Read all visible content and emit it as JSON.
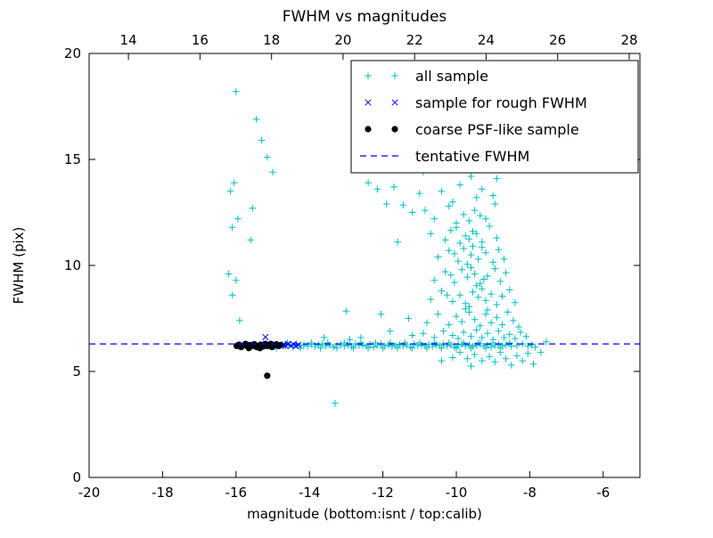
{
  "chart_data": {
    "type": "scatter",
    "title": "FWHM vs magnitudes",
    "xlabel": "magnitude (bottom:isnt / top:calib)",
    "ylabel": "FWHM (pix)",
    "xlim": [
      -20,
      -5
    ],
    "ylim": [
      0,
      20
    ],
    "xlim_top": [
      12.9,
      28.3
    ],
    "xticks": [
      -20,
      -18,
      -16,
      -14,
      -12,
      -10,
      -8,
      -6
    ],
    "xticks_top": [
      14,
      16,
      18,
      20,
      22,
      24,
      26,
      28
    ],
    "yticks": [
      0,
      5,
      10,
      15,
      20
    ],
    "grid": false,
    "legend_position": "upper right",
    "series": [
      {
        "name": "all sample",
        "marker": "plus",
        "color": "#00bfbf",
        "points": [
          [
            -15.95,
            6.22
          ],
          [
            -15.85,
            6.18
          ],
          [
            -15.75,
            6.25
          ],
          [
            -15.65,
            6.2
          ],
          [
            -15.55,
            6.28
          ],
          [
            -15.45,
            6.15
          ],
          [
            -15.35,
            6.22
          ],
          [
            -15.25,
            6.3
          ],
          [
            -15.15,
            6.2
          ],
          [
            -15.05,
            6.25
          ],
          [
            -14.95,
            6.18
          ],
          [
            -14.85,
            6.22
          ],
          [
            -14.75,
            6.28
          ],
          [
            -14.65,
            6.2
          ],
          [
            -14.55,
            6.25
          ],
          [
            -14.45,
            6.15
          ],
          [
            -14.35,
            6.3
          ],
          [
            -14.25,
            6.22
          ],
          [
            -14.15,
            6.25
          ],
          [
            -14.05,
            6.2
          ],
          [
            -13.95,
            6.28
          ],
          [
            -13.85,
            6.18
          ],
          [
            -13.75,
            6.25
          ],
          [
            -13.65,
            6.3
          ],
          [
            -13.55,
            6.2
          ],
          [
            -13.45,
            6.25
          ],
          [
            -13.35,
            6.15
          ],
          [
            -13.25,
            6.22
          ],
          [
            -13.15,
            6.28
          ],
          [
            -13.05,
            6.2
          ],
          [
            -12.95,
            6.25
          ],
          [
            -12.85,
            6.18
          ],
          [
            -12.75,
            6.3
          ],
          [
            -12.65,
            6.22
          ],
          [
            -12.55,
            6.25
          ],
          [
            -12.45,
            6.2
          ],
          [
            -12.35,
            6.28
          ],
          [
            -12.25,
            6.15
          ],
          [
            -12.15,
            6.22
          ],
          [
            -12.05,
            6.3
          ],
          [
            -11.95,
            6.2
          ],
          [
            -11.85,
            6.25
          ],
          [
            -11.75,
            6.18
          ],
          [
            -11.65,
            6.22
          ],
          [
            -11.55,
            6.28
          ],
          [
            -11.45,
            6.2
          ],
          [
            -11.35,
            6.25
          ],
          [
            -11.25,
            6.15
          ],
          [
            -11.15,
            6.3
          ],
          [
            -11.05,
            6.22
          ],
          [
            -10.95,
            6.25
          ],
          [
            -10.85,
            6.2
          ],
          [
            -10.75,
            6.28
          ],
          [
            -10.65,
            6.18
          ],
          [
            -10.55,
            6.25
          ],
          [
            -10.45,
            6.22
          ],
          [
            -10.35,
            6.3
          ],
          [
            -10.25,
            6.2
          ],
          [
            -10.15,
            6.25
          ],
          [
            -10.05,
            6.15
          ],
          [
            -9.95,
            6.22
          ],
          [
            -9.85,
            6.28
          ],
          [
            -9.75,
            6.2
          ],
          [
            -9.65,
            6.25
          ],
          [
            -9.55,
            6.18
          ],
          [
            -9.45,
            6.22
          ],
          [
            -9.35,
            6.3
          ],
          [
            -9.25,
            6.2
          ],
          [
            -9.15,
            6.25
          ],
          [
            -9.05,
            6.15
          ],
          [
            -8.95,
            6.22
          ],
          [
            -8.85,
            6.28
          ],
          [
            -8.75,
            6.2
          ],
          [
            -8.65,
            6.25
          ],
          [
            -8.5,
            6.18
          ],
          [
            -8.35,
            6.22
          ],
          [
            -8.2,
            6.3
          ],
          [
            -8.05,
            6.2
          ],
          [
            -7.95,
            6.25
          ],
          [
            -7.85,
            6.15
          ],
          [
            -14.9,
            6.1
          ],
          [
            -14.6,
            6.35
          ],
          [
            -14.25,
            6.1
          ],
          [
            -13.95,
            6.35
          ],
          [
            -13.7,
            6.1
          ],
          [
            -13.5,
            6.35
          ],
          [
            -13.25,
            6.1
          ],
          [
            -13.05,
            6.35
          ],
          [
            -12.8,
            6.1
          ],
          [
            -12.6,
            6.35
          ],
          [
            -12.4,
            6.1
          ],
          [
            -12.2,
            6.35
          ],
          [
            -12.0,
            6.1
          ],
          [
            -11.8,
            6.35
          ],
          [
            -11.6,
            6.1
          ],
          [
            -11.4,
            6.35
          ],
          [
            -11.2,
            6.1
          ],
          [
            -11.0,
            6.35
          ],
          [
            -10.8,
            6.1
          ],
          [
            -10.6,
            6.35
          ],
          [
            -10.4,
            6.1
          ],
          [
            -10.2,
            6.35
          ],
          [
            -10.0,
            6.1
          ],
          [
            -9.8,
            6.35
          ],
          [
            -9.6,
            6.1
          ],
          [
            -9.4,
            6.35
          ],
          [
            -9.2,
            6.1
          ],
          [
            -9.0,
            6.35
          ],
          [
            -8.8,
            6.1
          ],
          [
            -8.55,
            6.35
          ],
          [
            -10.9,
            14.4
          ],
          [
            -10.4,
            13.5
          ],
          [
            -9.9,
            13.8
          ],
          [
            -9.6,
            14.2
          ],
          [
            -9.3,
            13.6
          ],
          [
            -8.9,
            14.1
          ],
          [
            -12.4,
            13.9
          ],
          [
            -12.15,
            13.6
          ],
          [
            -11.0,
            13.4
          ],
          [
            -9.0,
            13.3
          ],
          [
            -9.45,
            13.2
          ],
          [
            -10.1,
            13.0
          ],
          [
            -11.9,
            12.9
          ],
          [
            -11.2,
            12.5
          ],
          [
            -10.6,
            12.2
          ],
          [
            -10.2,
            12.8
          ],
          [
            -9.8,
            12.4
          ],
          [
            -9.5,
            12.6
          ],
          [
            -9.2,
            12.2
          ],
          [
            -8.95,
            12.9
          ],
          [
            -9.65,
            12.1
          ],
          [
            -10.0,
            12.0
          ],
          [
            -9.35,
            12.35
          ],
          [
            -10.85,
            12.6
          ],
          [
            -11.6,
            11.1
          ],
          [
            -10.7,
            11.5
          ],
          [
            -10.3,
            11.2
          ],
          [
            -10.0,
            11.8
          ],
          [
            -9.75,
            11.4
          ],
          [
            -9.55,
            11.6
          ],
          [
            -9.3,
            11.1
          ],
          [
            -9.1,
            11.85
          ],
          [
            -8.9,
            11.3
          ],
          [
            -9.45,
            11.5
          ],
          [
            -9.9,
            11.05
          ],
          [
            -10.15,
            11.65
          ],
          [
            -9.65,
            11.25
          ],
          [
            -10.5,
            10.4
          ],
          [
            -10.2,
            10.7
          ],
          [
            -9.95,
            10.2
          ],
          [
            -9.8,
            10.8
          ],
          [
            -9.6,
            10.5
          ],
          [
            -9.4,
            10.3
          ],
          [
            -9.2,
            10.6
          ],
          [
            -9.0,
            10.15
          ],
          [
            -8.85,
            10.75
          ],
          [
            -9.55,
            10.9
          ],
          [
            -9.7,
            10.05
          ],
          [
            -10.05,
            10.55
          ],
          [
            -9.3,
            10.85
          ],
          [
            -8.7,
            10.3
          ],
          [
            -10.6,
            9.3
          ],
          [
            -10.3,
            9.7
          ],
          [
            -10.05,
            9.2
          ],
          [
            -9.85,
            9.8
          ],
          [
            -9.7,
            9.45
          ],
          [
            -9.5,
            9.6
          ],
          [
            -9.35,
            9.15
          ],
          [
            -9.15,
            9.5
          ],
          [
            -8.95,
            9.85
          ],
          [
            -8.8,
            9.25
          ],
          [
            -9.6,
            9.9
          ],
          [
            -9.25,
            9.35
          ],
          [
            -10.15,
            9.55
          ],
          [
            -8.65,
            9.65
          ],
          [
            -9.45,
            9.05
          ],
          [
            -10.7,
            8.4
          ],
          [
            -10.4,
            8.8
          ],
          [
            -10.1,
            8.3
          ],
          [
            -9.9,
            8.6
          ],
          [
            -9.75,
            8.2
          ],
          [
            -9.55,
            8.75
          ],
          [
            -9.4,
            8.5
          ],
          [
            -9.2,
            8.35
          ],
          [
            -9.05,
            8.65
          ],
          [
            -8.9,
            8.15
          ],
          [
            -8.75,
            8.55
          ],
          [
            -8.55,
            8.85
          ],
          [
            -9.65,
            8.05
          ],
          [
            -9.3,
            8.9
          ],
          [
            -10.25,
            8.6
          ],
          [
            -8.4,
            8.25
          ],
          [
            -10.8,
            7.3
          ],
          [
            -10.5,
            7.7
          ],
          [
            -10.2,
            7.2
          ],
          [
            -10.0,
            7.6
          ],
          [
            -9.85,
            7.35
          ],
          [
            -9.65,
            7.8
          ],
          [
            -9.5,
            7.45
          ],
          [
            -9.35,
            7.15
          ],
          [
            -9.2,
            7.7
          ],
          [
            -9.05,
            7.3
          ],
          [
            -8.9,
            7.55
          ],
          [
            -8.75,
            7.2
          ],
          [
            -8.6,
            7.8
          ],
          [
            -8.45,
            7.4
          ],
          [
            -8.3,
            7.1
          ],
          [
            -9.75,
            7.95
          ],
          [
            -9.15,
            7.9
          ],
          [
            -11.3,
            7.5
          ],
          [
            -12.05,
            7.7
          ],
          [
            -13.0,
            7.85
          ],
          [
            -10.9,
            6.8
          ],
          [
            -10.6,
            6.6
          ],
          [
            -10.35,
            6.9
          ],
          [
            -10.1,
            6.7
          ],
          [
            -9.95,
            6.55
          ],
          [
            -9.8,
            6.85
          ],
          [
            -9.6,
            6.65
          ],
          [
            -9.45,
            6.95
          ],
          [
            -9.3,
            6.6
          ],
          [
            -9.15,
            6.8
          ],
          [
            -9.0,
            6.5
          ],
          [
            -8.85,
            6.9
          ],
          [
            -8.7,
            6.6
          ],
          [
            -8.55,
            6.75
          ],
          [
            -8.4,
            6.55
          ],
          [
            -8.25,
            6.85
          ],
          [
            -8.1,
            6.65
          ],
          [
            -11.2,
            6.7
          ],
          [
            -11.8,
            6.9
          ],
          [
            -12.6,
            6.6
          ],
          [
            -9.9,
            5.9
          ],
          [
            -9.7,
            5.6
          ],
          [
            -9.5,
            5.8
          ],
          [
            -9.3,
            5.5
          ],
          [
            -9.1,
            5.7
          ],
          [
            -8.95,
            5.45
          ],
          [
            -8.8,
            5.9
          ],
          [
            -8.65,
            5.6
          ],
          [
            -8.5,
            5.3
          ],
          [
            -8.35,
            5.75
          ],
          [
            -8.2,
            5.5
          ],
          [
            -8.05,
            5.85
          ],
          [
            -7.9,
            5.35
          ],
          [
            -9.6,
            5.25
          ],
          [
            -10.1,
            5.65
          ],
          [
            -10.4,
            5.5
          ],
          [
            -16.0,
            18.2
          ],
          [
            -16.05,
            13.9
          ],
          [
            -16.15,
            13.5
          ],
          [
            -15.95,
            12.2
          ],
          [
            -16.1,
            11.8
          ],
          [
            -16.2,
            9.6
          ],
          [
            -16.0,
            9.3
          ],
          [
            -16.1,
            8.6
          ],
          [
            -15.9,
            7.4
          ],
          [
            -15.45,
            16.9
          ],
          [
            -15.3,
            15.9
          ],
          [
            -15.15,
            15.1
          ],
          [
            -15.0,
            14.4
          ],
          [
            -15.55,
            12.7
          ],
          [
            -15.6,
            11.2
          ],
          [
            -13.3,
            3.5
          ],
          [
            -7.55,
            6.4
          ],
          [
            -7.7,
            5.9
          ],
          [
            -11.7,
            13.7
          ],
          [
            -11.45,
            12.85
          ],
          [
            -13.6,
            6.6
          ],
          [
            -12.9,
            6.5
          ]
        ]
      },
      {
        "name": "sample for rough FWHM",
        "marker": "x",
        "color": "#0000ff",
        "points": [
          [
            -15.2,
            6.62
          ],
          [
            -14.72,
            6.25
          ],
          [
            -14.65,
            6.2
          ],
          [
            -14.58,
            6.3
          ],
          [
            -14.5,
            6.22
          ],
          [
            -14.44,
            6.28
          ],
          [
            -14.37,
            6.2
          ],
          [
            -14.3,
            6.25
          ]
        ]
      },
      {
        "name": "coarse PSF-like sample",
        "marker": "circle",
        "color": "#000000",
        "points": [
          [
            -15.98,
            6.2
          ],
          [
            -15.92,
            6.26
          ],
          [
            -15.86,
            6.15
          ],
          [
            -15.8,
            6.22
          ],
          [
            -15.74,
            6.3
          ],
          [
            -15.68,
            6.18
          ],
          [
            -15.62,
            6.25
          ],
          [
            -15.56,
            6.2
          ],
          [
            -15.5,
            6.28
          ],
          [
            -15.44,
            6.15
          ],
          [
            -15.38,
            6.22
          ],
          [
            -15.32,
            6.26
          ],
          [
            -15.26,
            6.18
          ],
          [
            -15.2,
            6.3
          ],
          [
            -15.14,
            6.2
          ],
          [
            -15.08,
            6.25
          ],
          [
            -15.02,
            6.15
          ],
          [
            -14.96,
            6.22
          ],
          [
            -14.9,
            6.28
          ],
          [
            -14.84,
            6.2
          ],
          [
            -14.78,
            6.25
          ],
          [
            -15.65,
            6.1
          ],
          [
            -15.35,
            6.1
          ],
          [
            -15.05,
            6.3
          ],
          [
            -15.15,
            4.8
          ]
        ]
      },
      {
        "name": "tentative FWHM",
        "marker": "dashed-line",
        "color": "#0000ff",
        "y": 6.3
      }
    ]
  }
}
